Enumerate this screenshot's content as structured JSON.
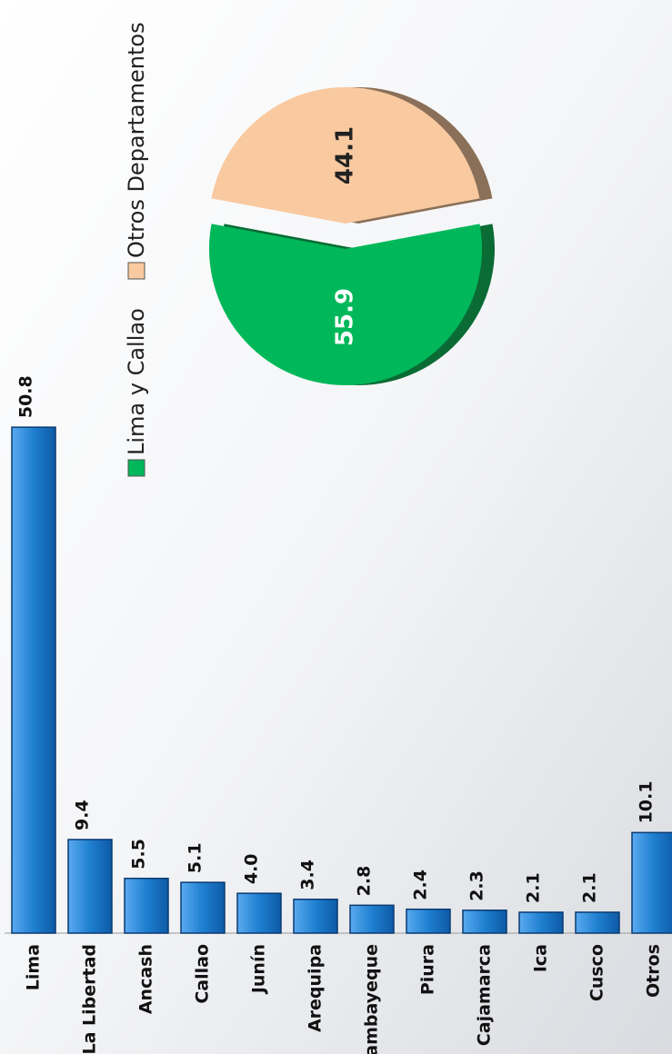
{
  "chart_data": [
    {
      "type": "bar",
      "categories": [
        "Lima",
        "La Libertad",
        "Ancash",
        "Callao",
        "Junín",
        "Arequipa",
        "Lambayeque",
        "Piura",
        "Cajamarca",
        "Ica",
        "Cusco",
        "Otros"
      ],
      "values": [
        50.8,
        9.4,
        5.5,
        5.1,
        4.0,
        3.4,
        2.8,
        2.4,
        2.3,
        2.1,
        2.1,
        10.1
      ],
      "value_labels": [
        "50.8",
        "9.4",
        "5.5",
        "5.1",
        "4.0",
        "3.4",
        "2.8",
        "2.4",
        "2.3",
        "2.1",
        "2.1",
        "10.1"
      ],
      "color": "#1f7fd0",
      "ylim": [
        0,
        52
      ]
    },
    {
      "type": "pie",
      "categories": [
        "Lima y Callao",
        "Otros Departamentos"
      ],
      "values": [
        55.9,
        44.1
      ],
      "colors": [
        "#00b859",
        "#f9c9a0"
      ]
    }
  ]
}
